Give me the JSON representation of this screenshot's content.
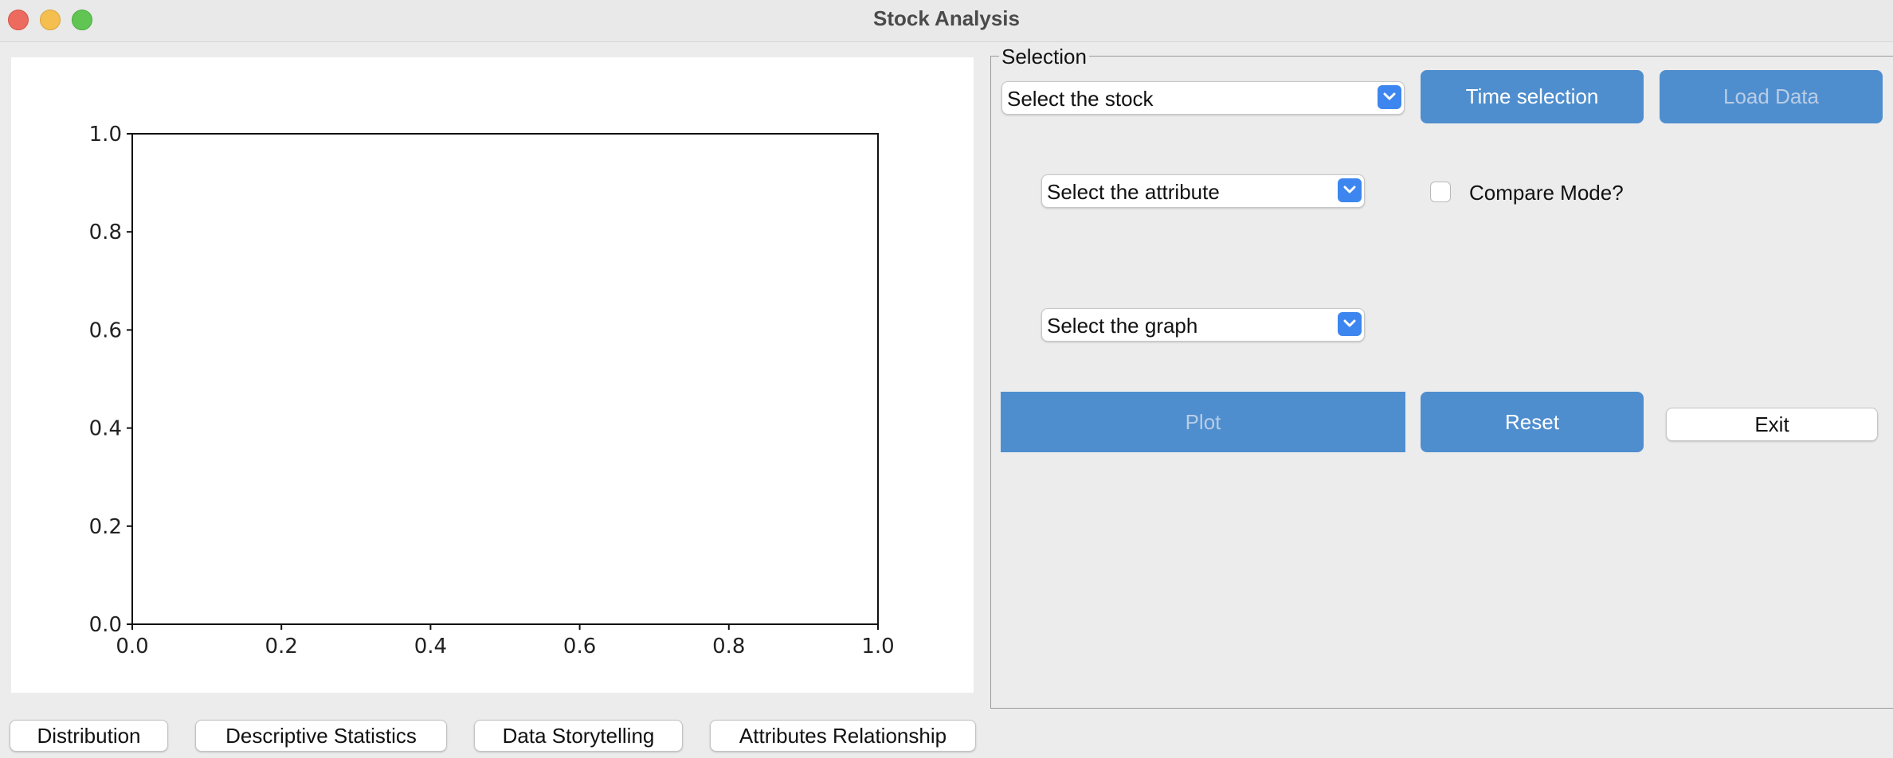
{
  "window": {
    "title": "Stock Analysis"
  },
  "selection": {
    "group_label": "Selection",
    "stock_combo": "Select the stock",
    "time_button": "Time selection",
    "load_button": "Load Data",
    "attribute_combo": "Select the attribute",
    "compare_label": "Compare Mode?",
    "compare_checked": false,
    "graph_combo": "Select the graph",
    "plot_button": "Plot",
    "reset_button": "Reset",
    "exit_button": "Exit"
  },
  "tabs": [
    "Distribution",
    "Descriptive Statistics",
    "Data Storytelling",
    "Attributes Relationship"
  ],
  "chart_data": {
    "type": "line",
    "series": [],
    "title": "",
    "xlabel": "",
    "ylabel": "",
    "xlim": [
      0.0,
      1.0
    ],
    "ylim": [
      0.0,
      1.0
    ],
    "xticks": [
      "0.0",
      "0.2",
      "0.4",
      "0.6",
      "0.8",
      "1.0"
    ],
    "yticks": [
      "0.0",
      "0.2",
      "0.4",
      "0.6",
      "0.8",
      "1.0"
    ],
    "grid": false
  },
  "colors": {
    "accent": "#4f8ece",
    "combo_button": "#3d86f0"
  }
}
